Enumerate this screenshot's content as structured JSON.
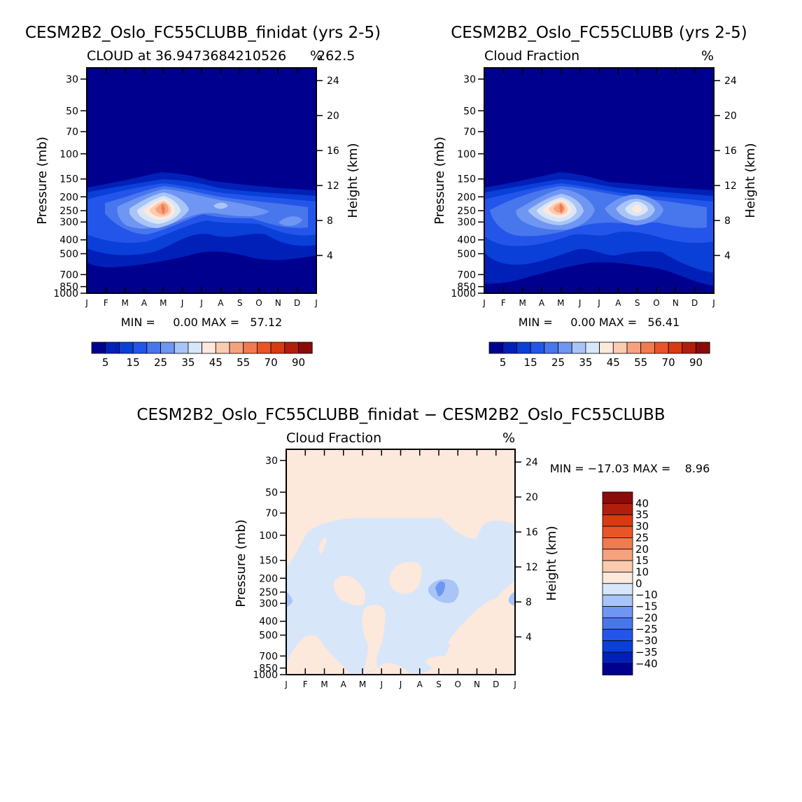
{
  "chart_data": [
    {
      "type": "contour",
      "title": "CESM2B2_Oslo_FC55CLUBB_finidat (yrs 2-5)",
      "subtitle_left": "CLOUD at 36.9473684210526",
      "subtitle_right": "262.5",
      "units": "%",
      "ylabel": "Pressure (mb)",
      "ylabel_right": "Height (km)",
      "months": [
        "J",
        "F",
        "M",
        "A",
        "M",
        "J",
        "J",
        "A",
        "S",
        "O",
        "N",
        "D",
        "J"
      ],
      "pressure_ticks": [
        30,
        50,
        70,
        100,
        150,
        200,
        250,
        300,
        400,
        500,
        700,
        850,
        1000
      ],
      "height_ticks": [
        4,
        8,
        12,
        16,
        20,
        24
      ],
      "min_max_text": "MIN =     0.00 MAX =   57.12",
      "colorbar_labels": [
        "5",
        "15",
        "25",
        "35",
        "45",
        "55",
        "70",
        "90"
      ],
      "peak": {
        "month_index": 4,
        "pressure_mb": 250,
        "value": 57.12
      }
    },
    {
      "type": "contour",
      "title": "CESM2B2_Oslo_FC55CLUBB (yrs 2-5)",
      "subtitle_left": "Cloud Fraction",
      "units": "%",
      "ylabel": "Pressure (mb)",
      "ylabel_right": "Height (km)",
      "months": [
        "J",
        "F",
        "M",
        "A",
        "M",
        "J",
        "J",
        "A",
        "S",
        "O",
        "N",
        "D",
        "J"
      ],
      "pressure_ticks": [
        30,
        50,
        70,
        100,
        150,
        200,
        250,
        300,
        400,
        500,
        700,
        850,
        1000
      ],
      "height_ticks": [
        4,
        8,
        12,
        16,
        20,
        24
      ],
      "min_max_text": "MIN =     0.00 MAX =   56.41",
      "colorbar_labels": [
        "5",
        "15",
        "25",
        "35",
        "45",
        "55",
        "70",
        "90"
      ],
      "peak": {
        "month_index": 4,
        "pressure_mb": 230,
        "value": 56.41
      }
    },
    {
      "type": "contour",
      "title": "CESM2B2_Oslo_FC55CLUBB_finidat − CESM2B2_Oslo_FC55CLUBB",
      "subtitle_left": "Cloud Fraction",
      "units": "%",
      "ylabel": "Pressure (mb)",
      "ylabel_right": "Height (km)",
      "months": [
        "J",
        "F",
        "M",
        "A",
        "M",
        "J",
        "J",
        "A",
        "S",
        "O",
        "N",
        "D",
        "J"
      ],
      "pressure_ticks": [
        30,
        50,
        70,
        100,
        150,
        200,
        250,
        300,
        400,
        500,
        700,
        850,
        1000
      ],
      "height_ticks": [
        4,
        8,
        12,
        16,
        20,
        24
      ],
      "min_max_text": "MIN = −17.03 MAX =    8.96",
      "colorbar_labels": [
        "40",
        "35",
        "30",
        "25",
        "20",
        "15",
        "10",
        "0",
        "−10",
        "−15",
        "−20",
        "−25",
        "−30",
        "−35",
        "−40"
      ]
    }
  ],
  "colors": {
    "abs": [
      "#00008f",
      "#0020b8",
      "#0a3fd8",
      "#2455ea",
      "#4876ec",
      "#6f96f2",
      "#a9c4f6",
      "#d8e6fa",
      "#fde8dc",
      "#fbcbb0",
      "#f7a27e",
      "#f27a50",
      "#ea5527",
      "#d93a12",
      "#b21e0c",
      "#8b0a0a"
    ],
    "diff": [
      "#8b0a0a",
      "#b21e0c",
      "#d93a12",
      "#ea5527",
      "#f27a50",
      "#f7a27e",
      "#fbcbb0",
      "#fde8dc",
      "#d8e6fa",
      "#a9c4f6",
      "#6f96f2",
      "#4876ec",
      "#2455ea",
      "#0a3fd8",
      "#0020b8",
      "#00008f"
    ]
  }
}
